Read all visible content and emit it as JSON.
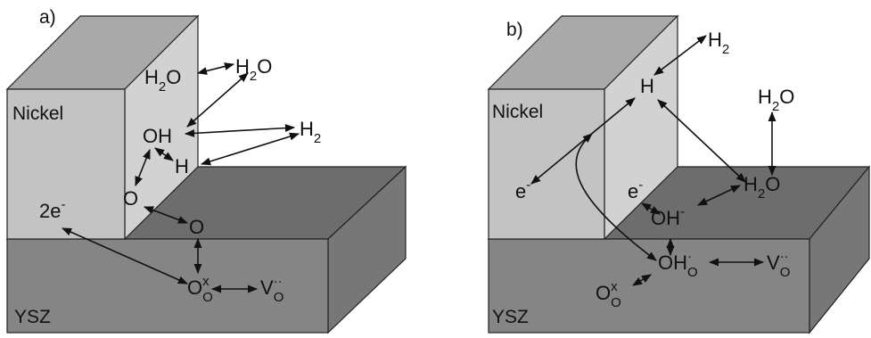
{
  "panels": [
    {
      "label": "a)",
      "nickel": "Nickel",
      "ysz": "YSZ",
      "species": [
        [
          {
            "t": "H"
          },
          {
            "sub": "2"
          },
          {
            "t": "O"
          }
        ],
        [
          {
            "t": "H"
          },
          {
            "sub": "2"
          },
          {
            "t": "O"
          }
        ],
        [
          {
            "t": "OH"
          }
        ],
        [
          {
            "t": "H"
          },
          {
            "sub": "2"
          }
        ],
        [
          {
            "t": "H"
          }
        ],
        [
          {
            "t": "O"
          }
        ],
        [
          {
            "t": "O"
          }
        ],
        [
          {
            "t": "2e"
          },
          {
            "sup": "-"
          }
        ],
        [
          {
            "t": "O"
          },
          {
            "sub": "O"
          },
          {
            "sup": "x"
          }
        ],
        [
          {
            "t": "V"
          },
          {
            "sub": "O"
          },
          {
            "sup": "··"
          }
        ]
      ]
    },
    {
      "label": "b)",
      "nickel": "Nickel",
      "ysz": "YSZ",
      "species": [
        [
          {
            "t": "H"
          },
          {
            "sub": "2"
          }
        ],
        [
          {
            "t": "H"
          }
        ],
        [
          {
            "t": "H"
          },
          {
            "sub": "2"
          },
          {
            "t": "O"
          }
        ],
        [
          {
            "t": "e"
          },
          {
            "sup": "-"
          }
        ],
        [
          {
            "t": "e"
          },
          {
            "sup": "-"
          }
        ],
        [
          {
            "t": "H"
          },
          {
            "sub": "2"
          },
          {
            "t": "O"
          }
        ],
        [
          {
            "t": "OH"
          },
          {
            "sup": "-"
          }
        ],
        [
          {
            "t": "OH"
          },
          {
            "sub": "O"
          },
          {
            "sup": "·"
          }
        ],
        [
          {
            "t": "V"
          },
          {
            "sub": "O"
          },
          {
            "sup": "··"
          }
        ],
        [
          {
            "t": "O"
          },
          {
            "sub": "O"
          },
          {
            "sup": "x"
          }
        ]
      ]
    }
  ]
}
